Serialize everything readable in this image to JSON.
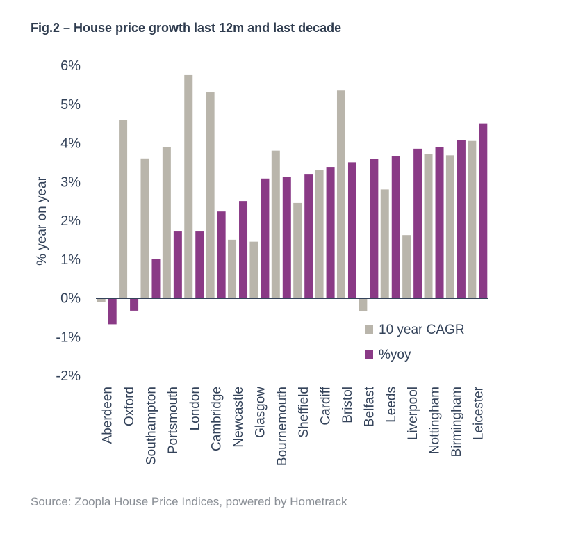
{
  "figure": {
    "title": "Fig.2 – House price growth last 12m and last decade",
    "source": "Source: Zoopla House Price Indices, powered by Hometrack"
  },
  "chart_data": {
    "type": "bar",
    "ylabel": "% year on year",
    "ylim": [
      -2,
      6
    ],
    "yticks": [
      -2,
      -1,
      0,
      1,
      2,
      3,
      4,
      5,
      6
    ],
    "ytick_labels": [
      "-2%",
      "-1%",
      "0%",
      "1%",
      "2%",
      "3%",
      "4%",
      "5%",
      "6%"
    ],
    "legend_position": "bottom-right",
    "categories": [
      "Aberdeen",
      "Oxford",
      "Southampton",
      "Portsmouth",
      "London",
      "Cambridge",
      "Newcastle",
      "Glasgow",
      "Bournemouth",
      "Sheffield",
      "Cardiff",
      "Bristol",
      "Belfast",
      "Leeds",
      "Liverpool",
      "Nottingham",
      "Birmingham",
      "Leicester"
    ],
    "series": [
      {
        "name": "10 year CAGR",
        "color": "#b9b5ab",
        "values": [
          -0.1,
          4.6,
          3.6,
          3.9,
          5.75,
          5.3,
          1.5,
          1.45,
          3.8,
          2.45,
          3.3,
          5.35,
          -0.35,
          2.8,
          1.62,
          3.72,
          3.68,
          4.05
        ]
      },
      {
        "name": "%yoy",
        "color": "#8a3a86",
        "values": [
          -0.68,
          -0.33,
          1.0,
          1.73,
          1.73,
          2.23,
          2.5,
          3.08,
          3.12,
          3.2,
          3.38,
          3.5,
          3.58,
          3.65,
          3.85,
          3.9,
          4.08,
          4.5
        ]
      }
    ]
  }
}
